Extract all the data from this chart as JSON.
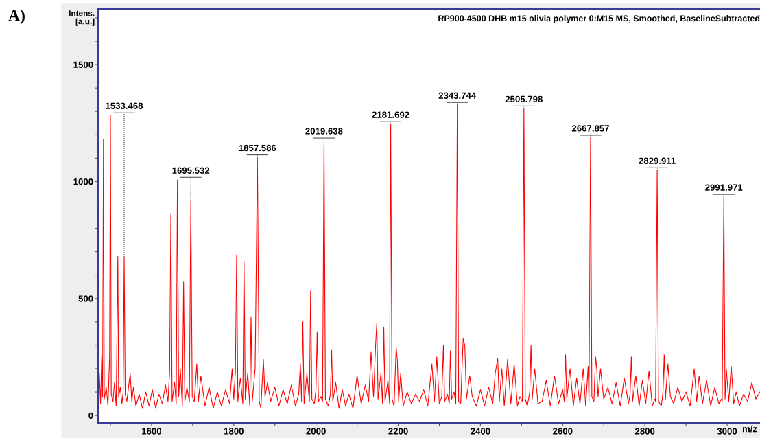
{
  "chart_data": {
    "type": "line",
    "title": "RP900-4500 DHB m15 olivia polymer 0:M15 MS, Smoothed, BaselineSubtracted",
    "xlabel": "m/z",
    "ylabel": "Intens.\n[a.u.]",
    "color": "#ff0000",
    "grid": false,
    "legend": false,
    "marker": "none",
    "line_style": "solid",
    "xlim": [
      1470,
      3080
    ],
    "ylim": [
      -32,
      1738
    ],
    "xticks": [
      {
        "value": 1500,
        "label": null
      },
      1600,
      {
        "value": 1700,
        "label": null
      },
      1800,
      {
        "value": 1900,
        "label": null
      },
      2000,
      {
        "value": 2100,
        "label": null
      },
      2200,
      {
        "value": 2300,
        "label": null
      },
      2400,
      {
        "value": 2500,
        "label": null
      },
      2600,
      {
        "value": 2700,
        "label": null
      },
      2800,
      {
        "value": 2900,
        "label": null
      },
      3000
    ],
    "yticks": [
      0,
      {
        "value": 100,
        "label": null
      },
      {
        "value": 200,
        "label": null
      },
      {
        "value": 300,
        "label": null
      },
      {
        "value": 400,
        "label": null
      },
      500,
      {
        "value": 600,
        "label": null
      },
      {
        "value": 700,
        "label": null
      },
      {
        "value": 800,
        "label": null
      },
      {
        "value": 900,
        "label": null
      },
      1000,
      {
        "value": 1100,
        "label": null
      },
      {
        "value": 1200,
        "label": null
      },
      {
        "value": 1300,
        "label": null
      },
      {
        "value": 1400,
        "label": null
      },
      1500,
      {
        "value": 1600,
        "label": null
      },
      {
        "value": 1700,
        "label": null
      }
    ],
    "x": [
      1470,
      1473,
      1476,
      1479,
      1481,
      1483,
      1485,
      1490,
      1494,
      1498,
      1500,
      1502,
      1506,
      1510,
      1514,
      1518,
      1520,
      1524,
      1528,
      1531,
      1533.468,
      1536,
      1540,
      1548,
      1552,
      1556,
      1562,
      1570,
      1578,
      1586,
      1594,
      1602,
      1610,
      1618,
      1626,
      1634,
      1640,
      1644,
      1647,
      1650,
      1656,
      1660,
      1663,
      1666,
      1670,
      1675,
      1678,
      1681,
      1686,
      1692,
      1695.532,
      1699,
      1704,
      1710,
      1714,
      1720,
      1730,
      1740,
      1750,
      1760,
      1770,
      1780,
      1790,
      1796,
      1800,
      1804,
      1807,
      1810,
      1816,
      1822,
      1825,
      1828,
      1834,
      1839,
      1842,
      1845,
      1852,
      1857.586,
      1862,
      1866,
      1872,
      1876,
      1882,
      1890,
      1900,
      1910,
      1920,
      1930,
      1940,
      1950,
      1958,
      1962,
      1965,
      1968,
      1971,
      1978,
      1984,
      1987,
      1990,
      1996,
      2000,
      2003,
      2006,
      2012,
      2016,
      2019.638,
      2023,
      2030,
      2035,
      2038,
      2041,
      2048,
      2056,
      2064,
      2072,
      2080,
      2090,
      2100,
      2110,
      2120,
      2128,
      2134,
      2140,
      2145,
      2148,
      2151,
      2158,
      2162,
      2165,
      2168,
      2175,
      2179,
      2181.692,
      2185,
      2190,
      2195,
      2198,
      2201,
      2206,
      2212,
      2222,
      2232,
      2242,
      2252,
      2262,
      2272,
      2282,
      2288,
      2294,
      2300,
      2306,
      2310,
      2313,
      2320,
      2324,
      2327,
      2330,
      2336,
      2340,
      2343.744,
      2347,
      2352,
      2358,
      2362,
      2366,
      2374,
      2380,
      2390,
      2400,
      2410,
      2420,
      2430,
      2436,
      2442,
      2446,
      2452,
      2458,
      2466,
      2474,
      2482,
      2490,
      2496,
      2502,
      2505.798,
      2509,
      2514,
      2520,
      2523,
      2526,
      2532,
      2540,
      2550,
      2560,
      2570,
      2580,
      2590,
      2600,
      2604,
      2607,
      2610,
      2618,
      2626,
      2634,
      2642,
      2650,
      2656,
      2662,
      2664,
      2667.857,
      2671,
      2676,
      2680,
      2683,
      2686,
      2692,
      2700,
      2710,
      2720,
      2730,
      2740,
      2750,
      2760,
      2764,
      2767,
      2770,
      2778,
      2786,
      2794,
      2802,
      2810,
      2818,
      2824,
      2826,
      2829.911,
      2833,
      2840,
      2844,
      2847,
      2850,
      2856,
      2862,
      2870,
      2880,
      2890,
      2900,
      2910,
      2920,
      2926,
      2932,
      2940,
      2950,
      2960,
      2970,
      2980,
      2986,
      2988,
      2991.971,
      2995,
      2998,
      3004,
      3010,
      3016,
      3022,
      3030,
      3040,
      3050,
      3060,
      3070,
      3080
    ],
    "values": [
      60,
      180,
      50,
      260,
      80,
      1180,
      70,
      120,
      40,
      250,
      1282,
      90,
      60,
      140,
      40,
      680,
      80,
      120,
      50,
      100,
      677,
      90,
      60,
      180,
      60,
      120,
      40,
      90,
      30,
      100,
      40,
      110,
      30,
      90,
      50,
      130,
      60,
      190,
      860,
      60,
      140,
      50,
      1006,
      80,
      200,
      40,
      570,
      60,
      120,
      60,
      916,
      80,
      60,
      220,
      60,
      170,
      40,
      120,
      30,
      100,
      40,
      110,
      50,
      200,
      70,
      190,
      686,
      60,
      160,
      50,
      660,
      70,
      180,
      40,
      419,
      60,
      200,
      1102,
      60,
      30,
      240,
      80,
      140,
      60,
      120,
      40,
      110,
      50,
      130,
      40,
      90,
      220,
      60,
      401,
      50,
      180,
      60,
      532,
      70,
      50,
      110,
      358,
      60,
      80,
      60,
      1174,
      70,
      40,
      90,
      279,
      60,
      140,
      30,
      110,
      40,
      90,
      30,
      170,
      50,
      130,
      60,
      270,
      80,
      300,
      395,
      70,
      180,
      50,
      375,
      60,
      150,
      50,
      1244,
      70,
      40,
      290,
      235,
      60,
      180,
      40,
      100,
      50,
      90,
      60,
      110,
      40,
      220,
      60,
      250,
      50,
      80,
      300,
      60,
      90,
      50,
      276,
      70,
      100,
      50,
      1326,
      60,
      50,
      328,
      300,
      70,
      170,
      80,
      40,
      110,
      40,
      120,
      50,
      180,
      244,
      60,
      200,
      40,
      240,
      50,
      220,
      40,
      80,
      60,
      1311,
      70,
      40,
      100,
      300,
      70,
      200,
      50,
      60,
      150,
      40,
      170,
      50,
      110,
      60,
      259,
      70,
      200,
      40,
      160,
      50,
      200,
      40,
      210,
      60,
      1186,
      80,
      60,
      250,
      200,
      80,
      200,
      70,
      120,
      50,
      140,
      40,
      160,
      50,
      90,
      250,
      60,
      170,
      40,
      150,
      50,
      190,
      40,
      70,
      60,
      1047,
      60,
      40,
      100,
      259,
      70,
      220,
      80,
      50,
      120,
      60,
      100,
      40,
      200,
      60,
      170,
      50,
      150,
      40,
      120,
      50,
      70,
      60,
      933,
      70,
      200,
      60,
      210,
      50,
      100,
      40,
      90,
      60,
      140,
      70,
      100
    ],
    "annotations": [
      "A)",
      {
        "text": "1533.468",
        "x": 1533.468,
        "y": 677
      },
      {
        "text": "1695.532",
        "x": 1695.532,
        "y": 916
      },
      {
        "text": "1857.586",
        "x": 1857.586,
        "y": 1102
      },
      {
        "text": "2019.638",
        "x": 2019.638,
        "y": 1174
      },
      {
        "text": "2181.692",
        "x": 2181.692,
        "y": 1244
      },
      {
        "text": "2343.744",
        "x": 2343.744,
        "y": 1326
      },
      {
        "text": "2505.798",
        "x": 2505.798,
        "y": 1311
      },
      {
        "text": "2667.857",
        "x": 2667.857,
        "y": 1186
      },
      {
        "text": "2829.911",
        "x": 2829.911,
        "y": 1047
      },
      {
        "text": "2991.971",
        "x": 2991.971,
        "y": 933
      }
    ]
  }
}
